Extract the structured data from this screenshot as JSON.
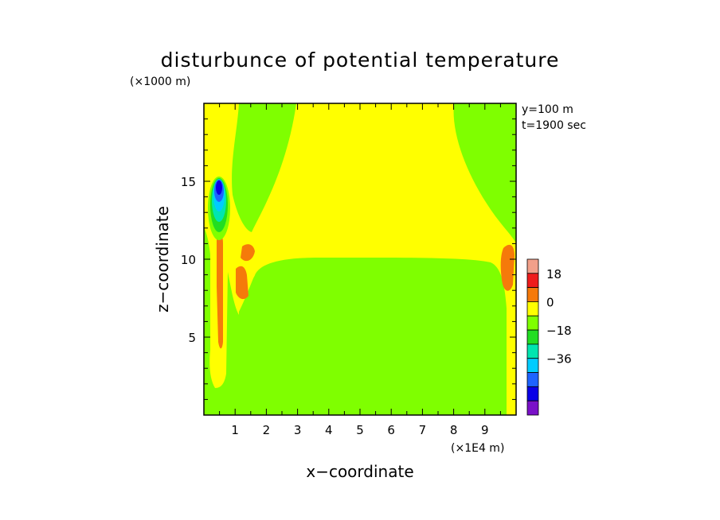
{
  "chart_data": {
    "type": "heatmap",
    "title": "disturbunce of potential temperature",
    "xlabel": "x−coordinate",
    "ylabel": "z−coordinate",
    "x_unit": "(×1E4 m)",
    "y_unit": "(×1000 m)",
    "annotations": [
      "y=100 m",
      "t=1900 sec"
    ],
    "xlim": [
      0,
      10
    ],
    "ylim": [
      0,
      20
    ],
    "x_ticks": [
      "1",
      "2",
      "3",
      "4",
      "5",
      "6",
      "7",
      "8",
      "9"
    ],
    "y_ticks": [
      "5",
      "10",
      "15"
    ],
    "x_tick_values": [
      1,
      2,
      3,
      4,
      5,
      6,
      7,
      8,
      9
    ],
    "y_tick_values": [
      5,
      10,
      15
    ],
    "colorbar": {
      "levels": [
        {
          "lo": 18,
          "hi": 27,
          "color": "#f2a08a"
        },
        {
          "lo": 9,
          "hi": 18,
          "color": "#ee1c1c"
        },
        {
          "lo": 0,
          "hi": 9,
          "color": "#f57a0a"
        },
        {
          "lo": -9,
          "hi": 0,
          "color": "#ffff00"
        },
        {
          "lo": -18,
          "hi": -9,
          "color": "#7fff00"
        },
        {
          "lo": -27,
          "hi": -18,
          "color": "#22dd22"
        },
        {
          "lo": -36,
          "hi": -27,
          "color": "#00e5b0"
        },
        {
          "lo": -45,
          "hi": -36,
          "color": "#00ccff"
        },
        {
          "lo": -54,
          "hi": -45,
          "color": "#1e64ff"
        },
        {
          "lo": -63,
          "hi": -54,
          "color": "#0a00e6"
        },
        {
          "lo": -72,
          "hi": -63,
          "color": "#7a10c8"
        }
      ],
      "tick_labels": [
        "18",
        "0",
        "−18",
        "−36"
      ],
      "tick_values": [
        18,
        0,
        -18,
        -36
      ]
    },
    "regions": [
      {
        "name": "lower-atmosphere",
        "x": [
          0.35,
          9.65
        ],
        "z": [
          0.0,
          10.2
        ],
        "band": "-18..-9"
      },
      {
        "name": "upper-central",
        "x": [
          1.3,
          8.3
        ],
        "z": [
          10.0,
          20.0
        ],
        "band": "-9..0"
      },
      {
        "name": "left-column",
        "x": [
          0.2,
          0.8
        ],
        "z": [
          1.5,
          12.0
        ],
        "band": "0..9"
      },
      {
        "name": "left-core",
        "x": [
          0.25,
          0.85
        ],
        "z": [
          11.5,
          15.2
        ],
        "band": "-63..-18"
      },
      {
        "name": "left-lobe",
        "x": [
          1.0,
          1.6
        ],
        "z": [
          7.5,
          10.5
        ],
        "band": "0..9"
      },
      {
        "name": "right-lobe",
        "x": [
          9.4,
          10.0
        ],
        "z": [
          7.0,
          11.0
        ],
        "band": "0..9"
      }
    ]
  },
  "colors": {
    "yellow": "#ffff00",
    "green": "#7fff00",
    "orange": "#f57a0a",
    "axes": "#000000",
    "background": "#ffffff"
  }
}
